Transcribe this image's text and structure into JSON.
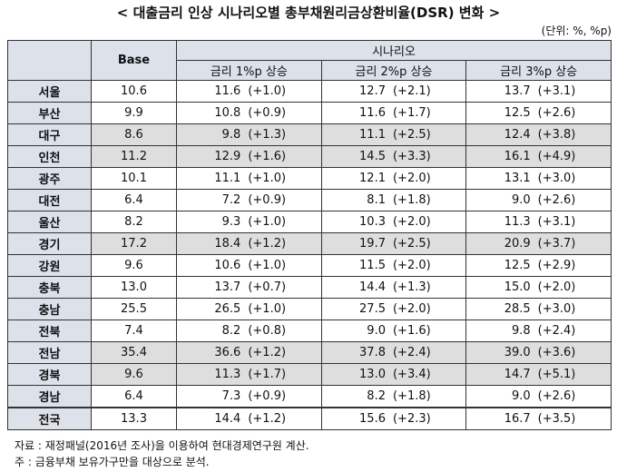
{
  "header": {
    "title": "< 대출금리 인상 시나리오별 총부채원리금상환비율(DSR) 변화 >",
    "unit": "(단위: %, %p)"
  },
  "table": {
    "base_header": "Base",
    "scenario_header": "시나리오",
    "scenarios": [
      "금리 1%p 상승",
      "금리 2%p 상승",
      "금리 3%p 상승"
    ],
    "rows": [
      {
        "region": "서울",
        "base": "10.6",
        "values": [
          [
            "11.6",
            "(+1.0)"
          ],
          [
            "12.7",
            "(+2.1)"
          ],
          [
            "13.7",
            "(+3.1)"
          ]
        ]
      },
      {
        "region": "부산",
        "base": "9.9",
        "values": [
          [
            "10.8",
            "(+0.9)"
          ],
          [
            "11.6",
            "(+1.7)"
          ],
          [
            "12.5",
            "(+2.6)"
          ]
        ]
      },
      {
        "region": "대구",
        "base": "8.6",
        "values": [
          [
            "9.8",
            "(+1.3)"
          ],
          [
            "11.1",
            "(+2.5)"
          ],
          [
            "12.4",
            "(+3.8)"
          ]
        ]
      },
      {
        "region": "인천",
        "base": "11.2",
        "values": [
          [
            "12.9",
            "(+1.6)"
          ],
          [
            "14.5",
            "(+3.3)"
          ],
          [
            "16.1",
            "(+4.9)"
          ]
        ]
      },
      {
        "region": "광주",
        "base": "10.1",
        "values": [
          [
            "11.1",
            "(+1.0)"
          ],
          [
            "12.1",
            "(+2.0)"
          ],
          [
            "13.1",
            "(+3.0)"
          ]
        ]
      },
      {
        "region": "대전",
        "base": "6.4",
        "values": [
          [
            "7.2",
            "(+0.9)"
          ],
          [
            "8.1",
            "(+1.8)"
          ],
          [
            "9.0",
            "(+2.6)"
          ]
        ]
      },
      {
        "region": "울산",
        "base": "8.2",
        "values": [
          [
            "9.3",
            "(+1.0)"
          ],
          [
            "10.3",
            "(+2.0)"
          ],
          [
            "11.3",
            "(+3.1)"
          ]
        ]
      },
      {
        "region": "경기",
        "base": "17.2",
        "values": [
          [
            "18.4",
            "(+1.2)"
          ],
          [
            "19.7",
            "(+2.5)"
          ],
          [
            "20.9",
            "(+3.7)"
          ]
        ]
      },
      {
        "region": "강원",
        "base": "9.6",
        "values": [
          [
            "10.6",
            "(+1.0)"
          ],
          [
            "11.5",
            "(+2.0)"
          ],
          [
            "12.5",
            "(+2.9)"
          ]
        ]
      },
      {
        "region": "충북",
        "base": "13.0",
        "values": [
          [
            "13.7",
            "(+0.7)"
          ],
          [
            "14.4",
            "(+1.3)"
          ],
          [
            "15.0",
            "(+2.0)"
          ]
        ]
      },
      {
        "region": "충남",
        "base": "25.5",
        "values": [
          [
            "26.5",
            "(+1.0)"
          ],
          [
            "27.5",
            "(+2.0)"
          ],
          [
            "28.5",
            "(+3.0)"
          ]
        ]
      },
      {
        "region": "전북",
        "base": "7.4",
        "values": [
          [
            "8.2",
            "(+0.8)"
          ],
          [
            "9.0",
            "(+1.6)"
          ],
          [
            "9.8",
            "(+2.4)"
          ]
        ]
      },
      {
        "region": "전남",
        "base": "35.4",
        "values": [
          [
            "36.6",
            "(+1.2)"
          ],
          [
            "37.8",
            "(+2.4)"
          ],
          [
            "39.0",
            "(+3.6)"
          ]
        ]
      },
      {
        "region": "경북",
        "base": "9.6",
        "values": [
          [
            "11.3",
            "(+1.7)"
          ],
          [
            "13.0",
            "(+3.4)"
          ],
          [
            "14.7",
            "(+5.1)"
          ]
        ]
      },
      {
        "region": "경남",
        "base": "6.4",
        "values": [
          [
            "7.3",
            "(+0.9)"
          ],
          [
            "8.2",
            "(+1.8)"
          ],
          [
            "9.0",
            "(+2.6)"
          ]
        ]
      },
      {
        "region": "전국",
        "base": "13.3",
        "values": [
          [
            "14.4",
            "(+1.2)"
          ],
          [
            "15.6",
            "(+2.3)"
          ],
          [
            "16.7",
            "(+3.5)"
          ]
        ]
      }
    ]
  },
  "notes": [
    "자료 : 재정패널(2016년 조사)을 이용하여 현대경제연구원 계산.",
    "주 : 금융부채 보유가구만을 대상으로 분석."
  ]
}
